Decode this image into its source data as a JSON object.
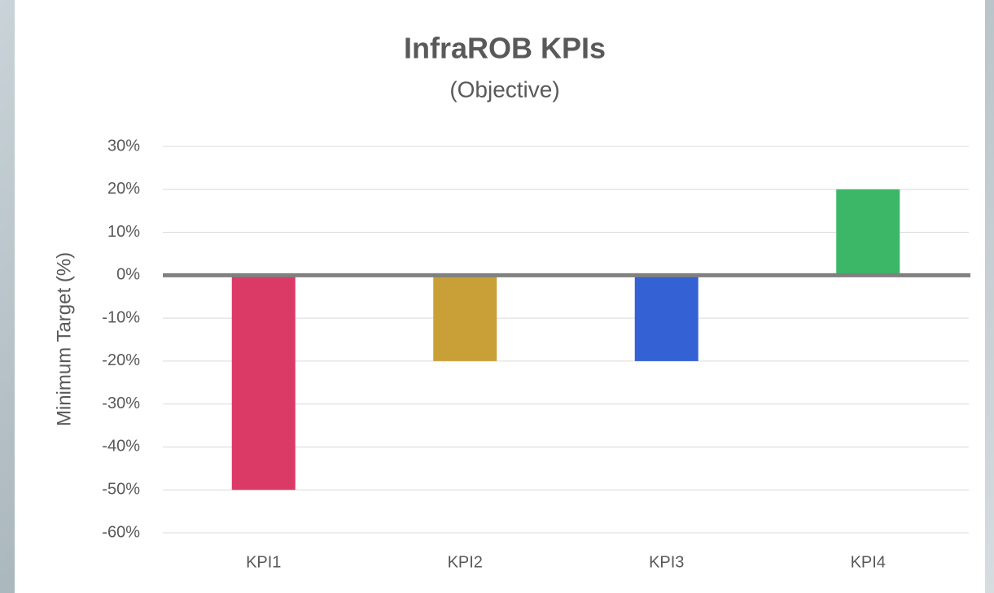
{
  "chart_data": {
    "type": "bar",
    "title": "InfraROB KPIs",
    "subtitle": "(Objective)",
    "y_label": "Minimum Target (%)",
    "categories": [
      "KPI1",
      "KPI2",
      "KPI3",
      "KPI4"
    ],
    "values": [
      -50,
      -20,
      -20,
      20
    ],
    "colors": [
      "#dc3a66",
      "#c9a038",
      "#3461d3",
      "#3cb767"
    ],
    "ylim": [
      -60,
      30
    ],
    "yticks": [
      {
        "value": -60,
        "label": "-60%"
      },
      {
        "value": -50,
        "label": "-50%"
      },
      {
        "value": -40,
        "label": "-40%"
      },
      {
        "value": -30,
        "label": "-30%"
      },
      {
        "value": -20,
        "label": "-20%"
      },
      {
        "value": -10,
        "label": "-10%"
      },
      {
        "value": 0,
        "label": "0%"
      },
      {
        "value": 10,
        "label": "10%"
      },
      {
        "value": 20,
        "label": "20%"
      },
      {
        "value": 30,
        "label": "30%"
      }
    ],
    "grid": true
  }
}
